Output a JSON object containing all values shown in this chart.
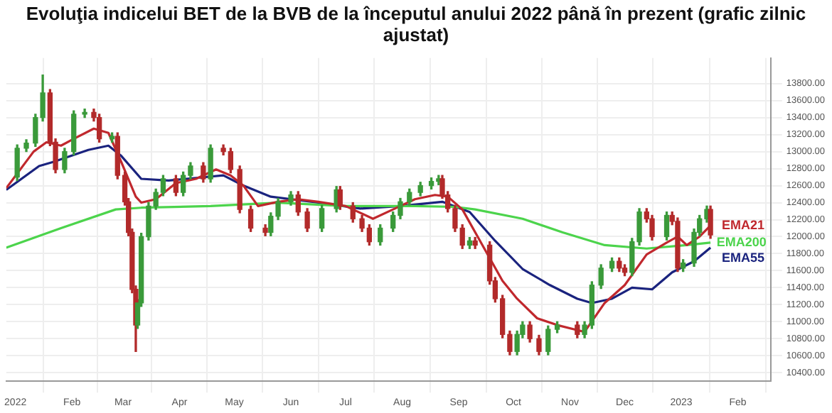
{
  "chart_data": {
    "type": "candlestick",
    "title": "Evoluţia indicelui BET de la BVB de la începutul anului 2022 până în prezent (grafic zilnic ajustat)",
    "x": [
      "2022-01-02",
      "2022-01-07",
      "2022-01-12",
      "2022-01-16",
      "2022-01-20",
      "2022-01-23",
      "2022-01-28",
      "2022-02-02",
      "2022-02-08",
      "2022-02-13",
      "2022-02-16",
      "2022-02-23",
      "2022-02-26",
      "2022-03-02",
      "2022-03-04",
      "2022-03-06",
      "2022-03-08",
      "2022-03-09",
      "2022-03-11",
      "2022-03-15",
      "2022-03-19",
      "2022-03-23",
      "2022-03-30",
      "2022-04-03",
      "2022-04-07",
      "2022-04-14",
      "2022-04-18",
      "2022-04-25",
      "2022-04-29",
      "2022-05-04",
      "2022-05-10",
      "2022-05-18",
      "2022-05-21",
      "2022-05-25",
      "2022-06-01",
      "2022-06-05",
      "2022-06-10",
      "2022-06-18",
      "2022-06-26",
      "2022-06-28",
      "2022-07-05",
      "2022-07-10",
      "2022-07-14",
      "2022-07-20",
      "2022-07-27",
      "2022-07-31",
      "2022-08-05",
      "2022-08-11",
      "2022-08-17",
      "2022-08-21",
      "2022-08-23",
      "2022-08-26",
      "2022-08-30",
      "2022-09-03",
      "2022-09-07",
      "2022-09-10",
      "2022-09-18",
      "2022-09-21",
      "2022-09-25",
      "2022-09-29",
      "2022-10-03",
      "2022-10-06",
      "2022-10-10",
      "2022-10-15",
      "2022-10-20",
      "2022-10-25",
      "2022-11-05",
      "2022-11-09",
      "2022-11-13",
      "2022-11-18",
      "2022-11-24",
      "2022-11-28",
      "2022-12-01",
      "2022-12-05",
      "2022-12-09",
      "2022-12-13",
      "2022-12-16",
      "2022-12-24",
      "2022-12-27",
      "2022-12-30",
      "2023-01-02",
      "2023-01-08",
      "2023-01-11",
      "2023-01-15",
      "2023-01-17"
    ],
    "ohlc": [
      [
        12700,
        13080,
        12660,
        13040
      ],
      [
        13040,
        13140,
        13000,
        13100
      ],
      [
        13100,
        13440,
        13060,
        13400
      ],
      [
        13400,
        13900,
        13360,
        13690
      ],
      [
        13690,
        13730,
        13070,
        13110
      ],
      [
        13110,
        13150,
        12750,
        12790
      ],
      [
        12790,
        13040,
        12750,
        13000
      ],
      [
        13000,
        13480,
        12960,
        13440
      ],
      [
        13440,
        13500,
        13400,
        13460
      ],
      [
        13460,
        13500,
        13360,
        13400
      ],
      [
        13400,
        13440,
        13110,
        13150
      ],
      [
        13150,
        13220,
        13110,
        13180
      ],
      [
        13180,
        13220,
        12680,
        12720
      ],
      [
        12720,
        12760,
        12370,
        12410
      ],
      [
        12410,
        12450,
        12010,
        12050
      ],
      [
        12050,
        12090,
        11340,
        11380
      ],
      [
        11380,
        11420,
        10650,
        10960
      ],
      [
        10960,
        11260,
        10920,
        11220
      ],
      [
        11220,
        12040,
        11180,
        12000
      ],
      [
        12000,
        12400,
        11960,
        12360
      ],
      [
        12360,
        12560,
        12320,
        12520
      ],
      [
        12520,
        12720,
        12480,
        12680
      ],
      [
        12680,
        12720,
        12480,
        12520
      ],
      [
        12520,
        12760,
        12480,
        12720
      ],
      [
        12720,
        12870,
        12680,
        12830
      ],
      [
        12830,
        12870,
        12640,
        12680
      ],
      [
        12680,
        13080,
        12640,
        13040
      ],
      [
        13040,
        13080,
        12960,
        13000
      ],
      [
        13000,
        13040,
        12750,
        12790
      ],
      [
        12790,
        12830,
        12280,
        12320
      ],
      [
        12320,
        12360,
        12060,
        12100
      ],
      [
        12100,
        12140,
        12010,
        12050
      ],
      [
        12050,
        12280,
        12010,
        12240
      ],
      [
        12240,
        12450,
        12200,
        12410
      ],
      [
        12410,
        12530,
        12370,
        12490
      ],
      [
        12490,
        12530,
        12250,
        12290
      ],
      [
        12290,
        12330,
        12060,
        12100
      ],
      [
        12100,
        12370,
        12060,
        12330
      ],
      [
        12330,
        12590,
        12290,
        12550
      ],
      [
        12550,
        12590,
        12320,
        12360
      ],
      [
        12360,
        12400,
        12170,
        12210
      ],
      [
        12210,
        12250,
        12060,
        12100
      ],
      [
        12100,
        12140,
        11900,
        11940
      ],
      [
        11940,
        12140,
        11900,
        12100
      ],
      [
        12100,
        12290,
        12060,
        12250
      ],
      [
        12250,
        12450,
        12210,
        12410
      ],
      [
        12410,
        12560,
        12370,
        12520
      ],
      [
        12520,
        12640,
        12480,
        12600
      ],
      [
        12600,
        12690,
        12560,
        12650
      ],
      [
        12650,
        12720,
        12610,
        12680
      ],
      [
        12680,
        12720,
        12450,
        12490
      ],
      [
        12490,
        12530,
        12290,
        12330
      ],
      [
        12330,
        12370,
        12060,
        12100
      ],
      [
        12100,
        12140,
        11860,
        11900
      ],
      [
        11900,
        11990,
        11860,
        11950
      ],
      [
        11950,
        11990,
        11860,
        11900
      ],
      [
        11900,
        11940,
        11440,
        11480
      ],
      [
        11480,
        11520,
        11230,
        11270
      ],
      [
        11270,
        11310,
        10810,
        10850
      ],
      [
        10850,
        10890,
        10610,
        10650
      ],
      [
        10650,
        10890,
        10610,
        10850
      ],
      [
        10850,
        11000,
        10810,
        10960
      ],
      [
        10960,
        11000,
        10760,
        10800
      ],
      [
        10800,
        10840,
        10610,
        10650
      ],
      [
        10650,
        10950,
        10610,
        10910
      ],
      [
        10910,
        11000,
        10870,
        10960
      ],
      [
        10960,
        11000,
        10810,
        10850
      ],
      [
        10850,
        11000,
        10810,
        10960
      ],
      [
        10960,
        11470,
        10920,
        11430
      ],
      [
        11430,
        11670,
        11390,
        11630
      ],
      [
        11630,
        11750,
        11590,
        11710
      ],
      [
        11710,
        11750,
        11590,
        11630
      ],
      [
        11630,
        11670,
        11540,
        11580
      ],
      [
        11580,
        11980,
        11540,
        11940
      ],
      [
        11940,
        12330,
        11900,
        12290
      ],
      [
        12290,
        12330,
        12170,
        12210
      ],
      [
        12210,
        12250,
        11960,
        12000
      ],
      [
        12000,
        12290,
        11960,
        12250
      ],
      [
        12250,
        12290,
        12140,
        12180
      ],
      [
        12180,
        12220,
        11590,
        11630
      ],
      [
        11630,
        11730,
        11590,
        11690
      ],
      [
        11690,
        12090,
        11650,
        12050
      ],
      [
        12050,
        12250,
        12010,
        12210
      ],
      [
        12210,
        12360,
        12170,
        12320
      ],
      [
        12320,
        12360,
        11980,
        12020
      ]
    ],
    "colors": [
      "#3a9a3a",
      "#3a9a3a",
      "#3a9a3a",
      "#3a9a3a",
      "#b22a2a",
      "#b22a2a",
      "#3a9a3a",
      "#3a9a3a",
      "#3a9a3a",
      "#b22a2a",
      "#b22a2a",
      "#3a9a3a",
      "#b22a2a",
      "#b22a2a",
      "#b22a2a",
      "#b22a2a",
      "#b22a2a",
      "#3a9a3a",
      "#3a9a3a",
      "#3a9a3a",
      "#3a9a3a",
      "#3a9a3a",
      "#b22a2a",
      "#3a9a3a",
      "#3a9a3a",
      "#b22a2a",
      "#3a9a3a",
      "#b22a2a",
      "#b22a2a",
      "#b22a2a",
      "#b22a2a",
      "#b22a2a",
      "#3a9a3a",
      "#3a9a3a",
      "#3a9a3a",
      "#b22a2a",
      "#b22a2a",
      "#3a9a3a",
      "#3a9a3a",
      "#b22a2a",
      "#b22a2a",
      "#b22a2a",
      "#b22a2a",
      "#3a9a3a",
      "#3a9a3a",
      "#3a9a3a",
      "#3a9a3a",
      "#3a9a3a",
      "#3a9a3a",
      "#3a9a3a",
      "#b22a2a",
      "#b22a2a",
      "#b22a2a",
      "#b22a2a",
      "#3a9a3a",
      "#b22a2a",
      "#b22a2a",
      "#b22a2a",
      "#b22a2a",
      "#b22a2a",
      "#3a9a3a",
      "#3a9a3a",
      "#b22a2a",
      "#b22a2a",
      "#3a9a3a",
      "#3a9a3a",
      "#b22a2a",
      "#3a9a3a",
      "#3a9a3a",
      "#3a9a3a",
      "#3a9a3a",
      "#b22a2a",
      "#b22a2a",
      "#3a9a3a",
      "#3a9a3a",
      "#b22a2a",
      "#b22a2a",
      "#3a9a3a",
      "#b22a2a",
      "#b22a2a",
      "#3a9a3a",
      "#3a9a3a",
      "#3a9a3a",
      "#3a9a3a",
      "#b22a2a"
    ],
    "series": [
      {
        "type": "line",
        "name": "EMA21",
        "color": "#c0282d",
        "x": [
          "2021-12-27",
          "2022-01-11",
          "2022-01-18",
          "2022-01-26",
          "2022-02-02",
          "2022-02-13",
          "2022-02-21",
          "2022-02-28",
          "2022-03-08",
          "2022-03-11",
          "2022-03-19",
          "2022-03-30",
          "2022-04-10",
          "2022-04-21",
          "2022-04-29",
          "2022-05-06",
          "2022-05-14",
          "2022-05-25",
          "2022-06-05",
          "2022-06-16",
          "2022-07-01",
          "2022-07-16",
          "2022-07-27",
          "2022-08-08",
          "2022-08-19",
          "2022-08-26",
          "2022-09-03",
          "2022-09-14",
          "2022-09-25",
          "2022-10-03",
          "2022-10-14",
          "2022-10-25",
          "2022-11-09",
          "2022-11-20",
          "2022-12-01",
          "2022-12-13",
          "2022-12-24",
          "2022-12-30",
          "2023-01-04",
          "2023-01-11",
          "2023-01-17"
        ],
        "values": [
          12570,
          13000,
          13110,
          13070,
          13150,
          13270,
          13220,
          12880,
          12470,
          12400,
          12440,
          12630,
          12680,
          12790,
          12720,
          12600,
          12360,
          12410,
          12440,
          12410,
          12360,
          12210,
          12320,
          12440,
          12490,
          12470,
          12320,
          11900,
          11480,
          11270,
          11040,
          10960,
          10880,
          11220,
          11430,
          11790,
          11930,
          12000,
          11900,
          12000,
          12130
        ]
      },
      {
        "type": "line",
        "name": "EMA200",
        "color": "#4cd44c",
        "x": [
          "2021-12-27",
          "2022-01-26",
          "2022-02-25",
          "2022-03-11",
          "2022-04-18",
          "2022-05-25",
          "2022-07-01",
          "2022-08-08",
          "2022-08-30",
          "2022-09-10",
          "2022-10-06",
          "2022-10-28",
          "2022-11-20",
          "2022-12-13",
          "2023-01-04",
          "2023-01-17"
        ],
        "values": [
          11870,
          12100,
          12320,
          12340,
          12360,
          12400,
          12360,
          12360,
          12350,
          12320,
          12210,
          12050,
          11900,
          11860,
          11900,
          11930
        ]
      },
      {
        "type": "line",
        "name": "EMA55",
        "color": "#1a237e",
        "x": [
          "2021-12-27",
          "2022-01-14",
          "2022-01-22",
          "2022-02-10",
          "2022-02-21",
          "2022-02-28",
          "2022-03-11",
          "2022-03-26",
          "2022-04-10",
          "2022-04-25",
          "2022-05-06",
          "2022-05-21",
          "2022-06-16",
          "2022-07-09",
          "2022-07-31",
          "2022-08-23",
          "2022-09-07",
          "2022-09-21",
          "2022-10-06",
          "2022-10-21",
          "2022-11-05",
          "2022-11-13",
          "2022-11-24",
          "2022-12-05",
          "2022-12-16",
          "2022-12-27",
          "2023-01-08",
          "2023-01-17"
        ],
        "values": [
          12550,
          12830,
          12880,
          13020,
          13070,
          12950,
          12680,
          12660,
          12690,
          12720,
          12600,
          12470,
          12400,
          12330,
          12360,
          12410,
          12290,
          11950,
          11620,
          11430,
          11270,
          11220,
          11270,
          11400,
          11380,
          11580,
          11710,
          11870
        ]
      }
    ],
    "marker": "none",
    "xlim": [
      "2021-12-27",
      "2023-02-19"
    ],
    "xticks": [
      {
        "value": "2022-01-01",
        "label": "2022"
      },
      {
        "value": "2022-02-01",
        "label": "Feb"
      },
      {
        "value": "2022-03-01",
        "label": "Mar"
      },
      {
        "value": "2022-04-01",
        "label": "Apr"
      },
      {
        "value": "2022-05-01",
        "label": "May"
      },
      {
        "value": "2022-06-01",
        "label": "Jun"
      },
      {
        "value": "2022-07-01",
        "label": "Jul"
      },
      {
        "value": "2022-08-01",
        "label": "Aug"
      },
      {
        "value": "2022-09-01",
        "label": "Sep"
      },
      {
        "value": "2022-10-01",
        "label": "Oct"
      },
      {
        "value": "2022-11-01",
        "label": "Nov"
      },
      {
        "value": "2022-12-01",
        "label": "Dec"
      },
      {
        "value": "2023-01-01",
        "label": "2023"
      },
      {
        "value": "2023-02-01",
        "label": "Feb"
      }
    ],
    "ylim": [
      10300,
      14100
    ],
    "yticks": [
      {
        "value": 10400,
        "label": "10400.00"
      },
      {
        "value": 10600,
        "label": "10600.00"
      },
      {
        "value": 10800,
        "label": "10800.00"
      },
      {
        "value": 11000,
        "label": "11000.00"
      },
      {
        "value": 11200,
        "label": "11200.00"
      },
      {
        "value": 11400,
        "label": "11400.00"
      },
      {
        "value": 11600,
        "label": "11600.00"
      },
      {
        "value": 11800,
        "label": "11800.00"
      },
      {
        "value": 12000,
        "label": "12000.00"
      },
      {
        "value": 12200,
        "label": "12200.00"
      },
      {
        "value": 12400,
        "label": "12400.00"
      },
      {
        "value": 12600,
        "label": "12600.00"
      },
      {
        "value": 12800,
        "label": "12800.00"
      },
      {
        "value": 13000,
        "label": "13000.00"
      },
      {
        "value": 13200,
        "label": "13200.00"
      },
      {
        "value": 13400,
        "label": "13400.00"
      },
      {
        "value": 13600,
        "label": "13600.00"
      },
      {
        "value": 13800,
        "label": "13800.00"
      }
    ],
    "grid": true,
    "legend": false
  }
}
